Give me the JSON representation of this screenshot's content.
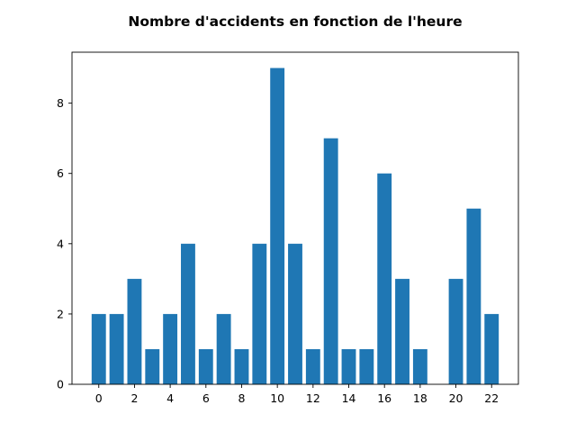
{
  "chart_data": {
    "type": "bar",
    "title": "Nombre d'accidents en fonction de l'heure",
    "xlabel": "",
    "ylabel": "",
    "x": [
      0,
      1,
      2,
      3,
      4,
      5,
      6,
      7,
      8,
      9,
      10,
      11,
      12,
      13,
      14,
      15,
      16,
      17,
      18,
      20,
      21,
      22
    ],
    "values": [
      2,
      2,
      3,
      1,
      2,
      4,
      1,
      2,
      1,
      4,
      9,
      4,
      1,
      7,
      1,
      1,
      6,
      3,
      1,
      3,
      5,
      2
    ],
    "xlim": [
      -1.5,
      23.5
    ],
    "ylim": [
      0,
      9.45
    ],
    "xticks": [
      0,
      2,
      4,
      6,
      8,
      10,
      12,
      14,
      16,
      18,
      20,
      22
    ],
    "yticks": [
      0,
      2,
      4,
      6,
      8
    ],
    "bar_color": "#1f77b4",
    "grid": false,
    "legend": "none"
  }
}
